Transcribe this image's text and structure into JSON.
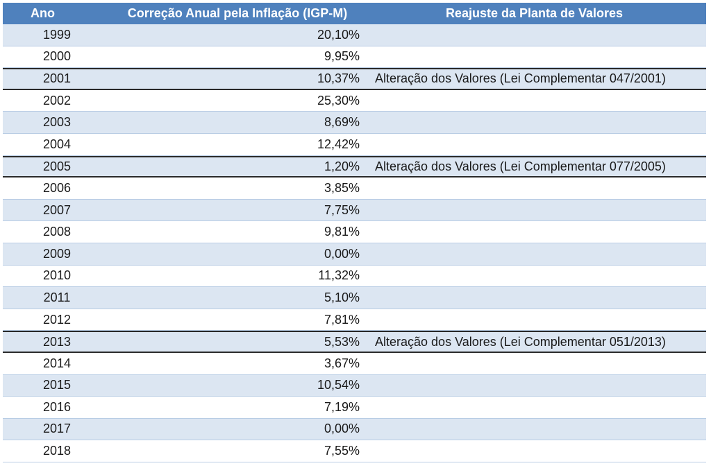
{
  "table": {
    "headers": {
      "year": "Ano",
      "rate": "Correção Anual pela Inflação (IGP-M)",
      "note": "Reajuste da Planta de Valores"
    },
    "rows": [
      {
        "year": "1999",
        "rate": "20,10%",
        "note": ""
      },
      {
        "year": "2000",
        "rate": "9,95%",
        "note": ""
      },
      {
        "year": "2001",
        "rate": "10,37%",
        "note": "Alteração dos Valores (Lei Complementar 047/2001)"
      },
      {
        "year": "2002",
        "rate": "25,30%",
        "note": ""
      },
      {
        "year": "2003",
        "rate": "8,69%",
        "note": ""
      },
      {
        "year": "2004",
        "rate": "12,42%",
        "note": ""
      },
      {
        "year": "2005",
        "rate": "1,20%",
        "note": "Alteração dos Valores (Lei Complementar 077/2005)"
      },
      {
        "year": "2006",
        "rate": "3,85%",
        "note": ""
      },
      {
        "year": "2007",
        "rate": "7,75%",
        "note": ""
      },
      {
        "year": "2008",
        "rate": "9,81%",
        "note": ""
      },
      {
        "year": "2009",
        "rate": "0,00%",
        "note": ""
      },
      {
        "year": "2010",
        "rate": "11,32%",
        "note": ""
      },
      {
        "year": "2011",
        "rate": "5,10%",
        "note": ""
      },
      {
        "year": "2012",
        "rate": "7,81%",
        "note": ""
      },
      {
        "year": "2013",
        "rate": "5,53%",
        "note": "Alteração dos Valores (Lei Complementar 051/2013)"
      },
      {
        "year": "2014",
        "rate": "3,67%",
        "note": ""
      },
      {
        "year": "2015",
        "rate": "10,54%",
        "note": ""
      },
      {
        "year": "2016",
        "rate": "7,19%",
        "note": ""
      },
      {
        "year": "2017",
        "rate": "0,00%",
        "note": ""
      },
      {
        "year": "2018",
        "rate": "7,55%",
        "note": ""
      }
    ]
  },
  "colors": {
    "header_bg": "#4f81bd",
    "header_text": "#ffffff",
    "row_shade": "#dce6f2",
    "row_plain": "#ffffff"
  }
}
